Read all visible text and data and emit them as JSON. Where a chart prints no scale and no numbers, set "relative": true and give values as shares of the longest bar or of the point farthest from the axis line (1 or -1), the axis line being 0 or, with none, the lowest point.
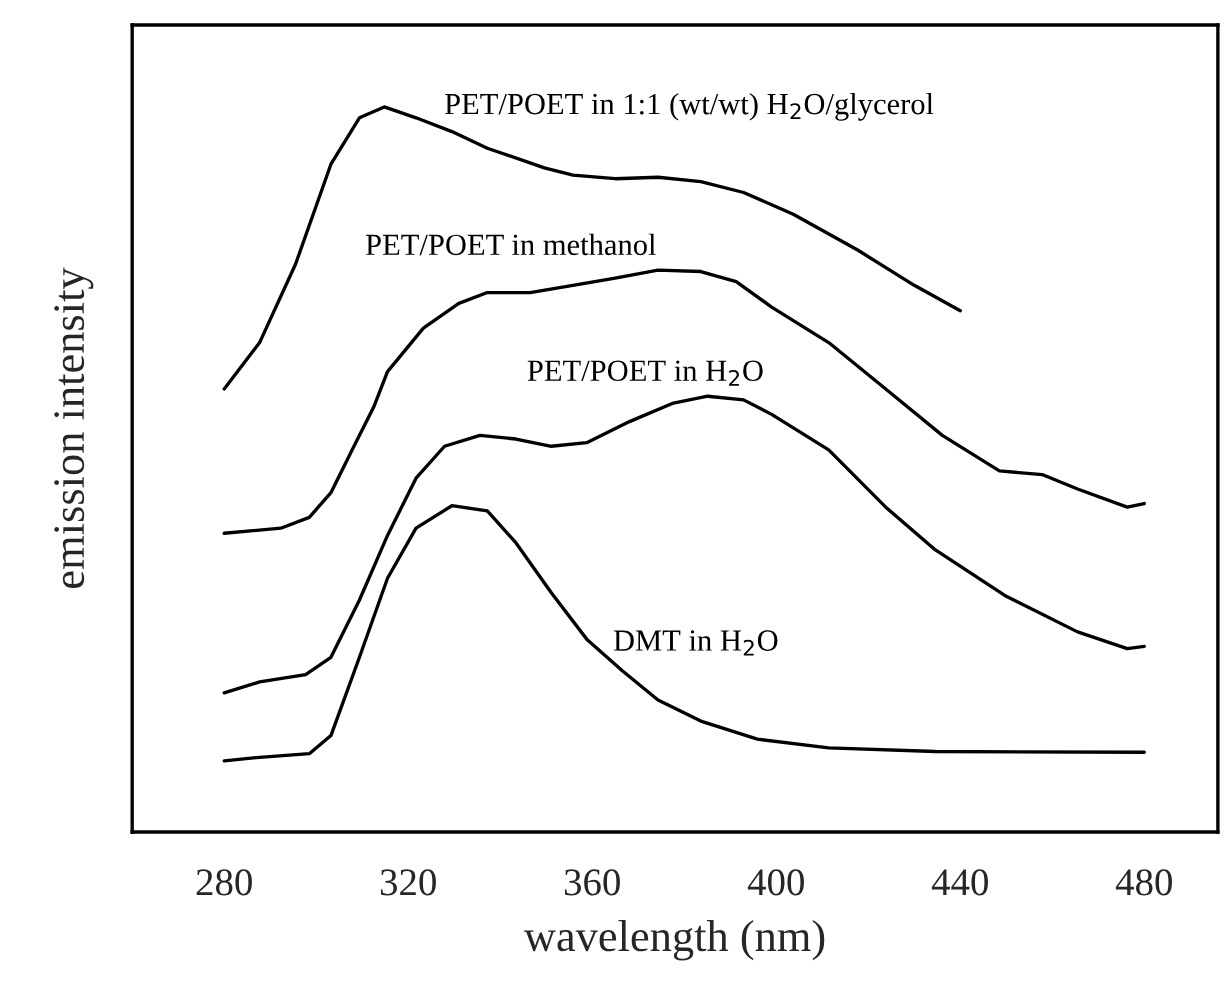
{
  "chart_data": {
    "type": "line",
    "relative": true,
    "xlabel": "wavelength (nm)",
    "ylabel": "emission intensity",
    "xlim": [
      260,
      496
    ],
    "xticks": [
      280,
      320,
      360,
      400,
      440,
      480
    ],
    "grid": false,
    "legend": false,
    "marker": "none",
    "line_style": "solid",
    "series": [
      {
        "name": "PET/POET in 1:1 (wt/wt) H$_{2}$O/glycerol",
        "color": "#000000",
        "x": [
          280,
          287.7,
          295.5,
          303.2,
          309.4,
          314.8,
          321.7,
          329.5,
          337.2,
          349.6,
          355.8,
          365.0,
          374.3,
          383.6,
          392.9,
          403.7,
          417.6,
          430.0,
          440
        ],
        "values": [
          0.611,
          0.675,
          0.783,
          0.921,
          0.985,
          1.0,
          0.985,
          0.966,
          0.943,
          0.916,
          0.906,
          0.901,
          0.903,
          0.897,
          0.882,
          0.852,
          0.803,
          0.754,
          0.719
        ]
      },
      {
        "name": "PET/POET in methanol",
        "color": "#000000",
        "x": [
          280,
          292.3,
          298.5,
          303.2,
          307.8,
          312.5,
          315.5,
          323.3,
          331.0,
          337.2,
          346.5,
          355.8,
          365.0,
          374.3,
          383.6,
          391.3,
          399.0,
          411.4,
          423.8,
          436.1,
          448.5,
          457.8,
          465.5,
          476.3,
          480
        ],
        "values": [
          0.412,
          0.419,
          0.434,
          0.468,
          0.527,
          0.586,
          0.635,
          0.695,
          0.729,
          0.744,
          0.744,
          0.754,
          0.764,
          0.775,
          0.773,
          0.759,
          0.724,
          0.675,
          0.611,
          0.547,
          0.498,
          0.493,
          0.473,
          0.448,
          0.453
        ]
      },
      {
        "name": "PET/POET in H$_{2}$O",
        "color": "#000000",
        "x": [
          280,
          287.7,
          297.7,
          303.2,
          309.4,
          315.5,
          321.7,
          327.9,
          335.6,
          343.4,
          351.1,
          358.8,
          368.1,
          377.4,
          385.1,
          392.9,
          399.0,
          411.4,
          423.8,
          434.6,
          450.0,
          465.5,
          476.3,
          480
        ],
        "values": [
          0.192,
          0.207,
          0.217,
          0.241,
          0.32,
          0.409,
          0.488,
          0.532,
          0.547,
          0.542,
          0.532,
          0.537,
          0.566,
          0.591,
          0.601,
          0.596,
          0.576,
          0.527,
          0.448,
          0.389,
          0.325,
          0.276,
          0.253,
          0.256
        ]
      },
      {
        "name": "DMT in H$_{2}$O",
        "color": "#000000",
        "x": [
          280,
          287.7,
          298.5,
          303.2,
          309.4,
          315.5,
          321.7,
          329.5,
          337.2,
          343.4,
          351.1,
          358.8,
          366.6,
          374.3,
          383.6,
          395.9,
          411.4,
          434.6,
          480
        ],
        "values": [
          0.098,
          0.103,
          0.108,
          0.133,
          0.241,
          0.35,
          0.419,
          0.45,
          0.443,
          0.399,
          0.33,
          0.266,
          0.222,
          0.182,
          0.153,
          0.128,
          0.116,
          0.111,
          0.11
        ]
      }
    ]
  }
}
